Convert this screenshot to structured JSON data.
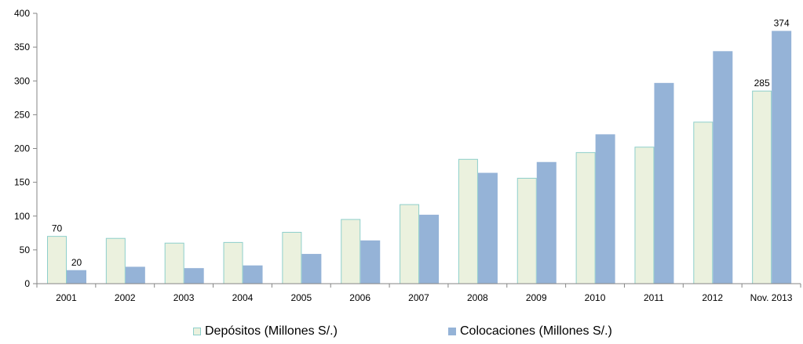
{
  "chart_data": {
    "type": "bar",
    "title": "",
    "xlabel": "",
    "ylabel": "",
    "categories": [
      "2001",
      "2002",
      "2003",
      "2004",
      "2005",
      "2006",
      "2007",
      "2008",
      "2009",
      "2010",
      "2011",
      "2012",
      "Nov. 2013"
    ],
    "ylim": [
      0,
      400
    ],
    "yticks": [
      "0",
      "50",
      "100",
      "150",
      "200",
      "250",
      "300",
      "350",
      "400"
    ],
    "grid": false,
    "legend_position": "bottom",
    "series": [
      {
        "name": "Depósitos (Millones S/.)",
        "values": [
          70,
          67,
          60,
          61,
          76,
          95,
          117,
          184,
          156,
          194,
          202,
          239,
          285
        ],
        "color": "#EBF1DE",
        "border": "#8ECFCB"
      },
      {
        "name": "Colocaciones (Millones S/.)",
        "values": [
          20,
          25,
          23,
          27,
          44,
          64,
          102,
          164,
          180,
          221,
          297,
          344,
          374
        ],
        "color": "#95B3D7",
        "border": "#95B3D7"
      }
    ],
    "data_labels": [
      {
        "series": 0,
        "index": 0,
        "text": "70"
      },
      {
        "series": 1,
        "index": 0,
        "text": "20"
      },
      {
        "series": 0,
        "index": 12,
        "text": "285"
      },
      {
        "series": 1,
        "index": 12,
        "text": "374"
      }
    ]
  }
}
